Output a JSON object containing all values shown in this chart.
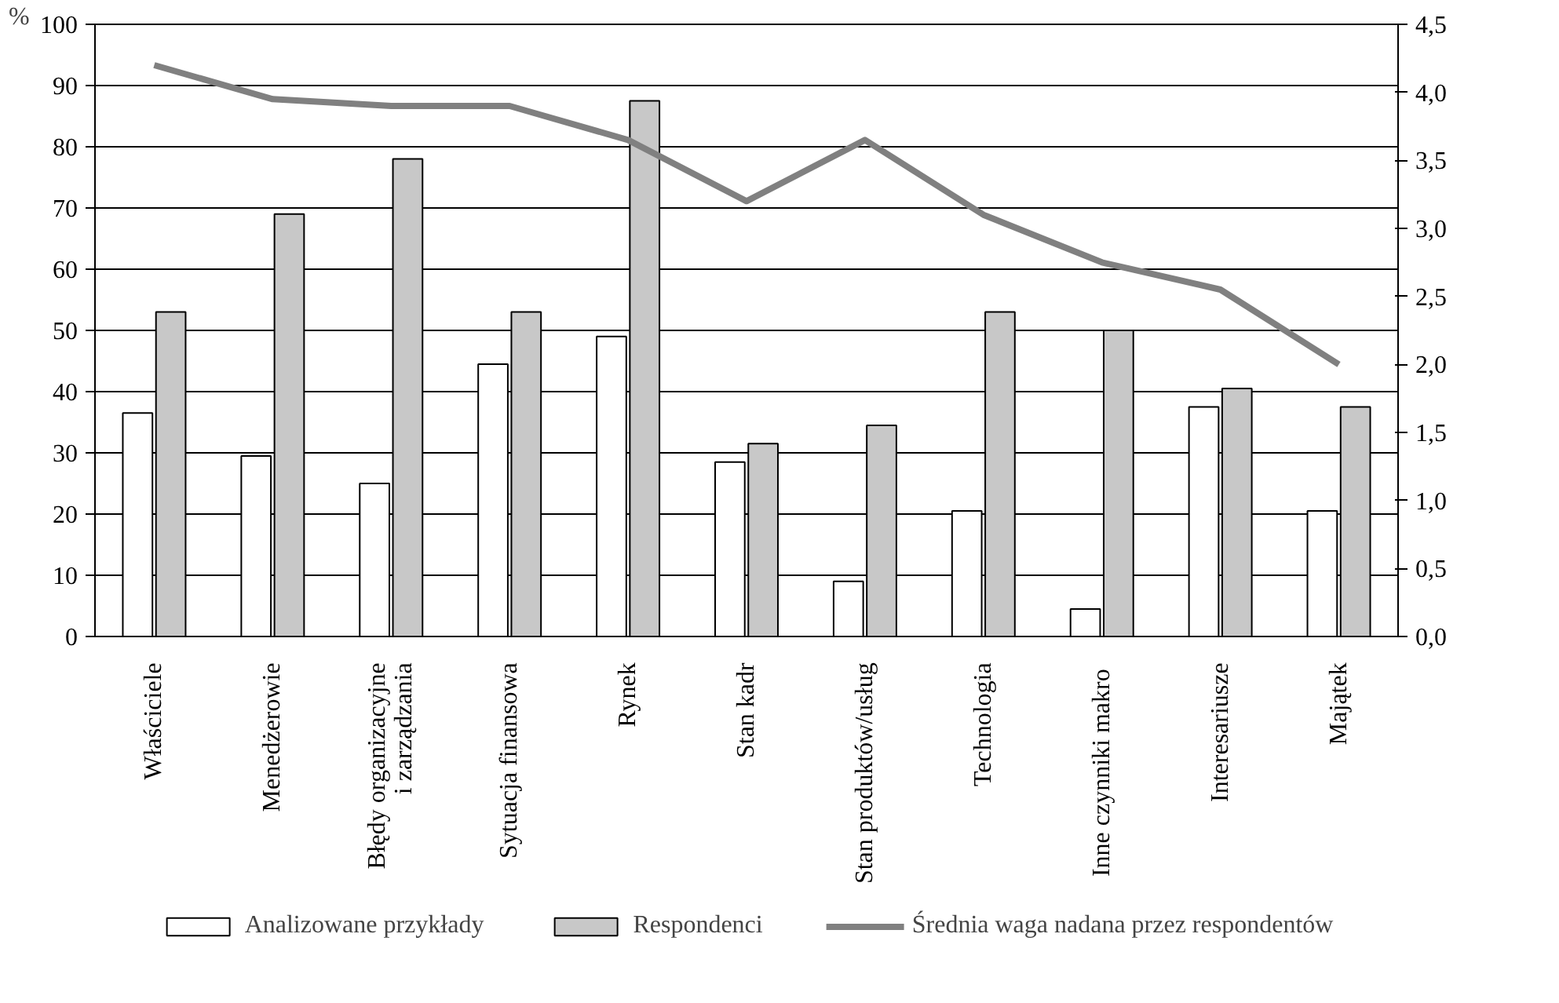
{
  "chart_data": {
    "type": "bar",
    "ylabel": "%",
    "categories": [
      "Właściciele",
      "Menedżerowie",
      "Błędy organizacyjne\ni zarządzania",
      "Sytuacja finansowa",
      "Rynek",
      "Stan kadr",
      "Stan produktów/usług",
      "Technologia",
      "Inne  czynniki makro",
      "Interesariusze",
      "Majątek"
    ],
    "series": [
      {
        "name": "Analizowane przykłady",
        "color": "#ffffff",
        "values": [
          36.5,
          29.5,
          25,
          44.5,
          49,
          28.5,
          9,
          20.5,
          4.5,
          37.5,
          20.5
        ]
      },
      {
        "name": "Respondenci",
        "color": "#c8c8c8",
        "values": [
          53,
          69,
          78,
          53,
          87.5,
          31.5,
          34.5,
          53,
          50,
          40.5,
          37.5
        ]
      },
      {
        "name": "Średnia waga nadana przez respondentów",
        "color": "#808080",
        "type": "line",
        "axis": "y2",
        "values": [
          4.2,
          3.95,
          3.9,
          3.9,
          3.65,
          3.2,
          3.65,
          3.1,
          2.75,
          2.55,
          2.0
        ]
      }
    ],
    "ylim": [
      0,
      100
    ],
    "yticks": [
      0,
      10,
      20,
      30,
      40,
      50,
      60,
      70,
      80,
      90,
      100
    ],
    "y2lim": [
      0,
      4.5
    ],
    "y2ticks": [
      {
        "value": 0,
        "label": "0,0"
      },
      {
        "value": 0.5,
        "label": "0,5"
      },
      {
        "value": 1,
        "label": "1,0"
      },
      {
        "value": 1.5,
        "label": "1,5"
      },
      {
        "value": 2,
        "label": "2,0"
      },
      {
        "value": 2.5,
        "label": "2,5"
      },
      {
        "value": 3,
        "label": "3,0"
      },
      {
        "value": 3.5,
        "label": "3,5"
      },
      {
        "value": 4,
        "label": "4,0"
      },
      {
        "value": 4.5,
        "label": "4,5"
      }
    ],
    "grid": "y",
    "legend": "bottom"
  }
}
